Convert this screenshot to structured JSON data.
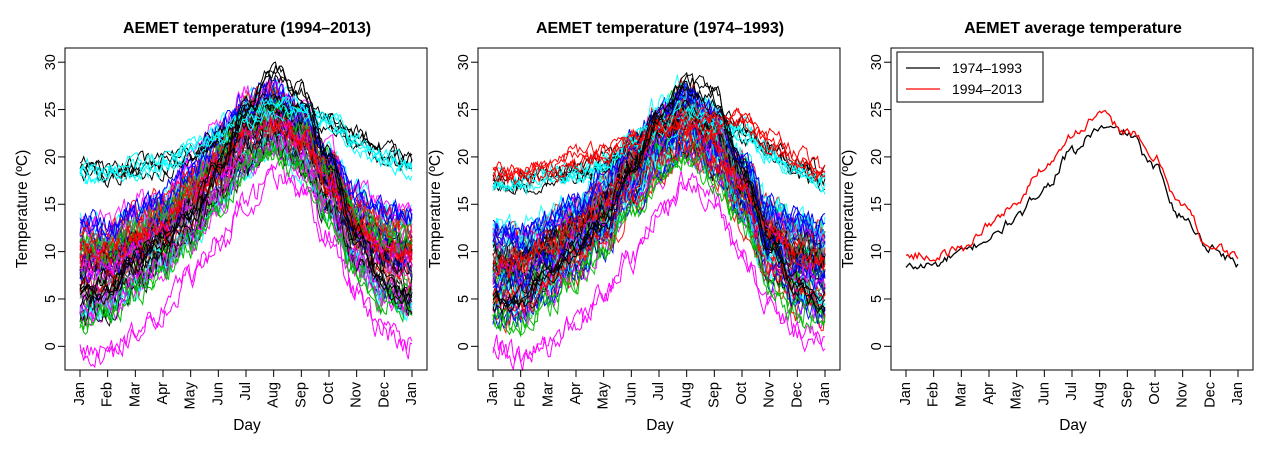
{
  "chart_data": [
    {
      "type": "line",
      "title": "AEMET temperature (1994–2013)",
      "xlabel": "Day",
      "ylabel": "Temperature (ºC)",
      "ylim": [
        -2.5,
        31.5
      ],
      "yticks": [
        0,
        5,
        10,
        15,
        20,
        25,
        30
      ],
      "xticks": [
        "Jan",
        "Feb",
        "Mar",
        "Apr",
        "May",
        "Jun",
        "Jul",
        "Aug",
        "Sep",
        "Oct",
        "Nov",
        "Dec",
        "Jan"
      ],
      "grid": false,
      "summary_profiles": [
        {
          "color": "#ff00ff",
          "values": [
            0.0,
            -0.5,
            1.5,
            4.0,
            7.5,
            11.0,
            15.0,
            18.5,
            17.0,
            12.0,
            6.0,
            2.0,
            0.5
          ]
        },
        {
          "color": "#00bb00",
          "values": [
            3.0,
            3.5,
            6.0,
            8.5,
            11.0,
            15.0,
            18.5,
            21.0,
            19.0,
            14.0,
            8.0,
            5.0,
            3.5
          ]
        },
        {
          "color": "#ff0000",
          "values": [
            10.0,
            10.5,
            12.0,
            14.0,
            16.5,
            20.0,
            23.5,
            24.0,
            22.0,
            17.5,
            13.0,
            10.5,
            10.0
          ]
        },
        {
          "color": "#0000ff",
          "values": [
            13.5,
            13.0,
            14.5,
            16.0,
            19.0,
            22.5,
            26.0,
            27.5,
            25.0,
            20.5,
            16.0,
            14.5,
            14.0
          ]
        },
        {
          "color": "#000000",
          "values": [
            19.0,
            18.5,
            19.0,
            19.5,
            20.5,
            22.5,
            24.0,
            25.5,
            25.0,
            24.0,
            22.0,
            20.5,
            19.5
          ]
        },
        {
          "color": "#00ffff",
          "values": [
            18.5,
            18.5,
            19.0,
            19.5,
            21.0,
            22.5,
            24.5,
            25.5,
            25.0,
            24.0,
            21.5,
            20.0,
            19.0
          ]
        },
        {
          "color": "#000000",
          "values": [
            5.5,
            6.0,
            9.0,
            11.5,
            14.0,
            19.0,
            25.0,
            29.0,
            27.0,
            20.0,
            12.0,
            7.0,
            5.0
          ]
        }
      ]
    },
    {
      "type": "line",
      "title": "AEMET temperature (1974–1993)",
      "xlabel": "Day",
      "ylabel": "Temperature (ºC)",
      "ylim": [
        -2.5,
        31.5
      ],
      "yticks": [
        0,
        5,
        10,
        15,
        20,
        25,
        30
      ],
      "xticks": [
        "Jan",
        "Feb",
        "Mar",
        "Apr",
        "May",
        "Jun",
        "Jul",
        "Aug",
        "Sep",
        "Oct",
        "Nov",
        "Dec",
        "Jan"
      ],
      "grid": false,
      "summary_profiles": [
        {
          "color": "#ff00ff",
          "values": [
            0.5,
            -1.0,
            0.5,
            2.5,
            5.5,
            9.5,
            14.0,
            18.0,
            15.5,
            10.0,
            4.5,
            1.5,
            0.5
          ]
        },
        {
          "color": "#00bb00",
          "values": [
            3.0,
            3.0,
            5.0,
            7.5,
            10.0,
            14.5,
            18.0,
            20.5,
            18.0,
            13.0,
            7.0,
            4.0,
            3.0
          ]
        },
        {
          "color": "#ff0000",
          "values": [
            9.0,
            9.5,
            11.0,
            13.0,
            15.5,
            19.5,
            23.0,
            23.5,
            21.5,
            17.0,
            12.5,
            10.0,
            9.0
          ]
        },
        {
          "color": "#0000ff",
          "values": [
            12.5,
            12.0,
            13.5,
            15.0,
            18.0,
            21.5,
            25.0,
            27.0,
            24.5,
            20.0,
            15.0,
            13.5,
            12.5
          ]
        },
        {
          "color": "#000000",
          "values": [
            17.5,
            17.5,
            18.0,
            18.5,
            19.5,
            21.5,
            23.5,
            24.5,
            24.0,
            23.0,
            21.0,
            19.0,
            18.0
          ]
        },
        {
          "color": "#00ffff",
          "values": [
            17.5,
            17.5,
            18.0,
            18.5,
            19.5,
            21.5,
            23.5,
            24.5,
            24.0,
            23.0,
            20.5,
            19.0,
            17.5
          ]
        },
        {
          "color": "#ff0000",
          "values": [
            18.5,
            18.5,
            19.0,
            20.0,
            20.5,
            22.0,
            23.5,
            24.0,
            24.0,
            24.0,
            22.0,
            20.0,
            18.5
          ]
        },
        {
          "color": "#000000",
          "values": [
            5.0,
            5.0,
            8.0,
            10.5,
            13.5,
            18.5,
            24.5,
            28.0,
            26.5,
            19.0,
            11.0,
            6.5,
            4.5
          ]
        }
      ]
    },
    {
      "type": "line",
      "title": "AEMET average temperature",
      "xlabel": "Day",
      "ylabel": "Temperature (ºC)",
      "ylim": [
        -2.5,
        31.5
      ],
      "yticks": [
        0,
        5,
        10,
        15,
        20,
        25,
        30
      ],
      "xticks": [
        "Jan",
        "Feb",
        "Mar",
        "Apr",
        "May",
        "Jun",
        "Jul",
        "Aug",
        "Sep",
        "Oct",
        "Nov",
        "Dec",
        "Jan"
      ],
      "grid": false,
      "legend": "top-left",
      "series": [
        {
          "name": "1974–1993",
          "color": "#000000",
          "values": [
            8.3,
            8.6,
            9.8,
            11.4,
            13.5,
            16.8,
            20.5,
            23.0,
            22.5,
            18.8,
            13.6,
            10.5,
            8.8
          ]
        },
        {
          "name": "1994–2013",
          "color": "#ff0000",
          "values": [
            9.6,
            9.5,
            10.3,
            12.8,
            15.2,
            19.0,
            22.4,
            24.3,
            22.8,
            19.8,
            14.8,
            10.6,
            9.5
          ]
        }
      ]
    }
  ]
}
